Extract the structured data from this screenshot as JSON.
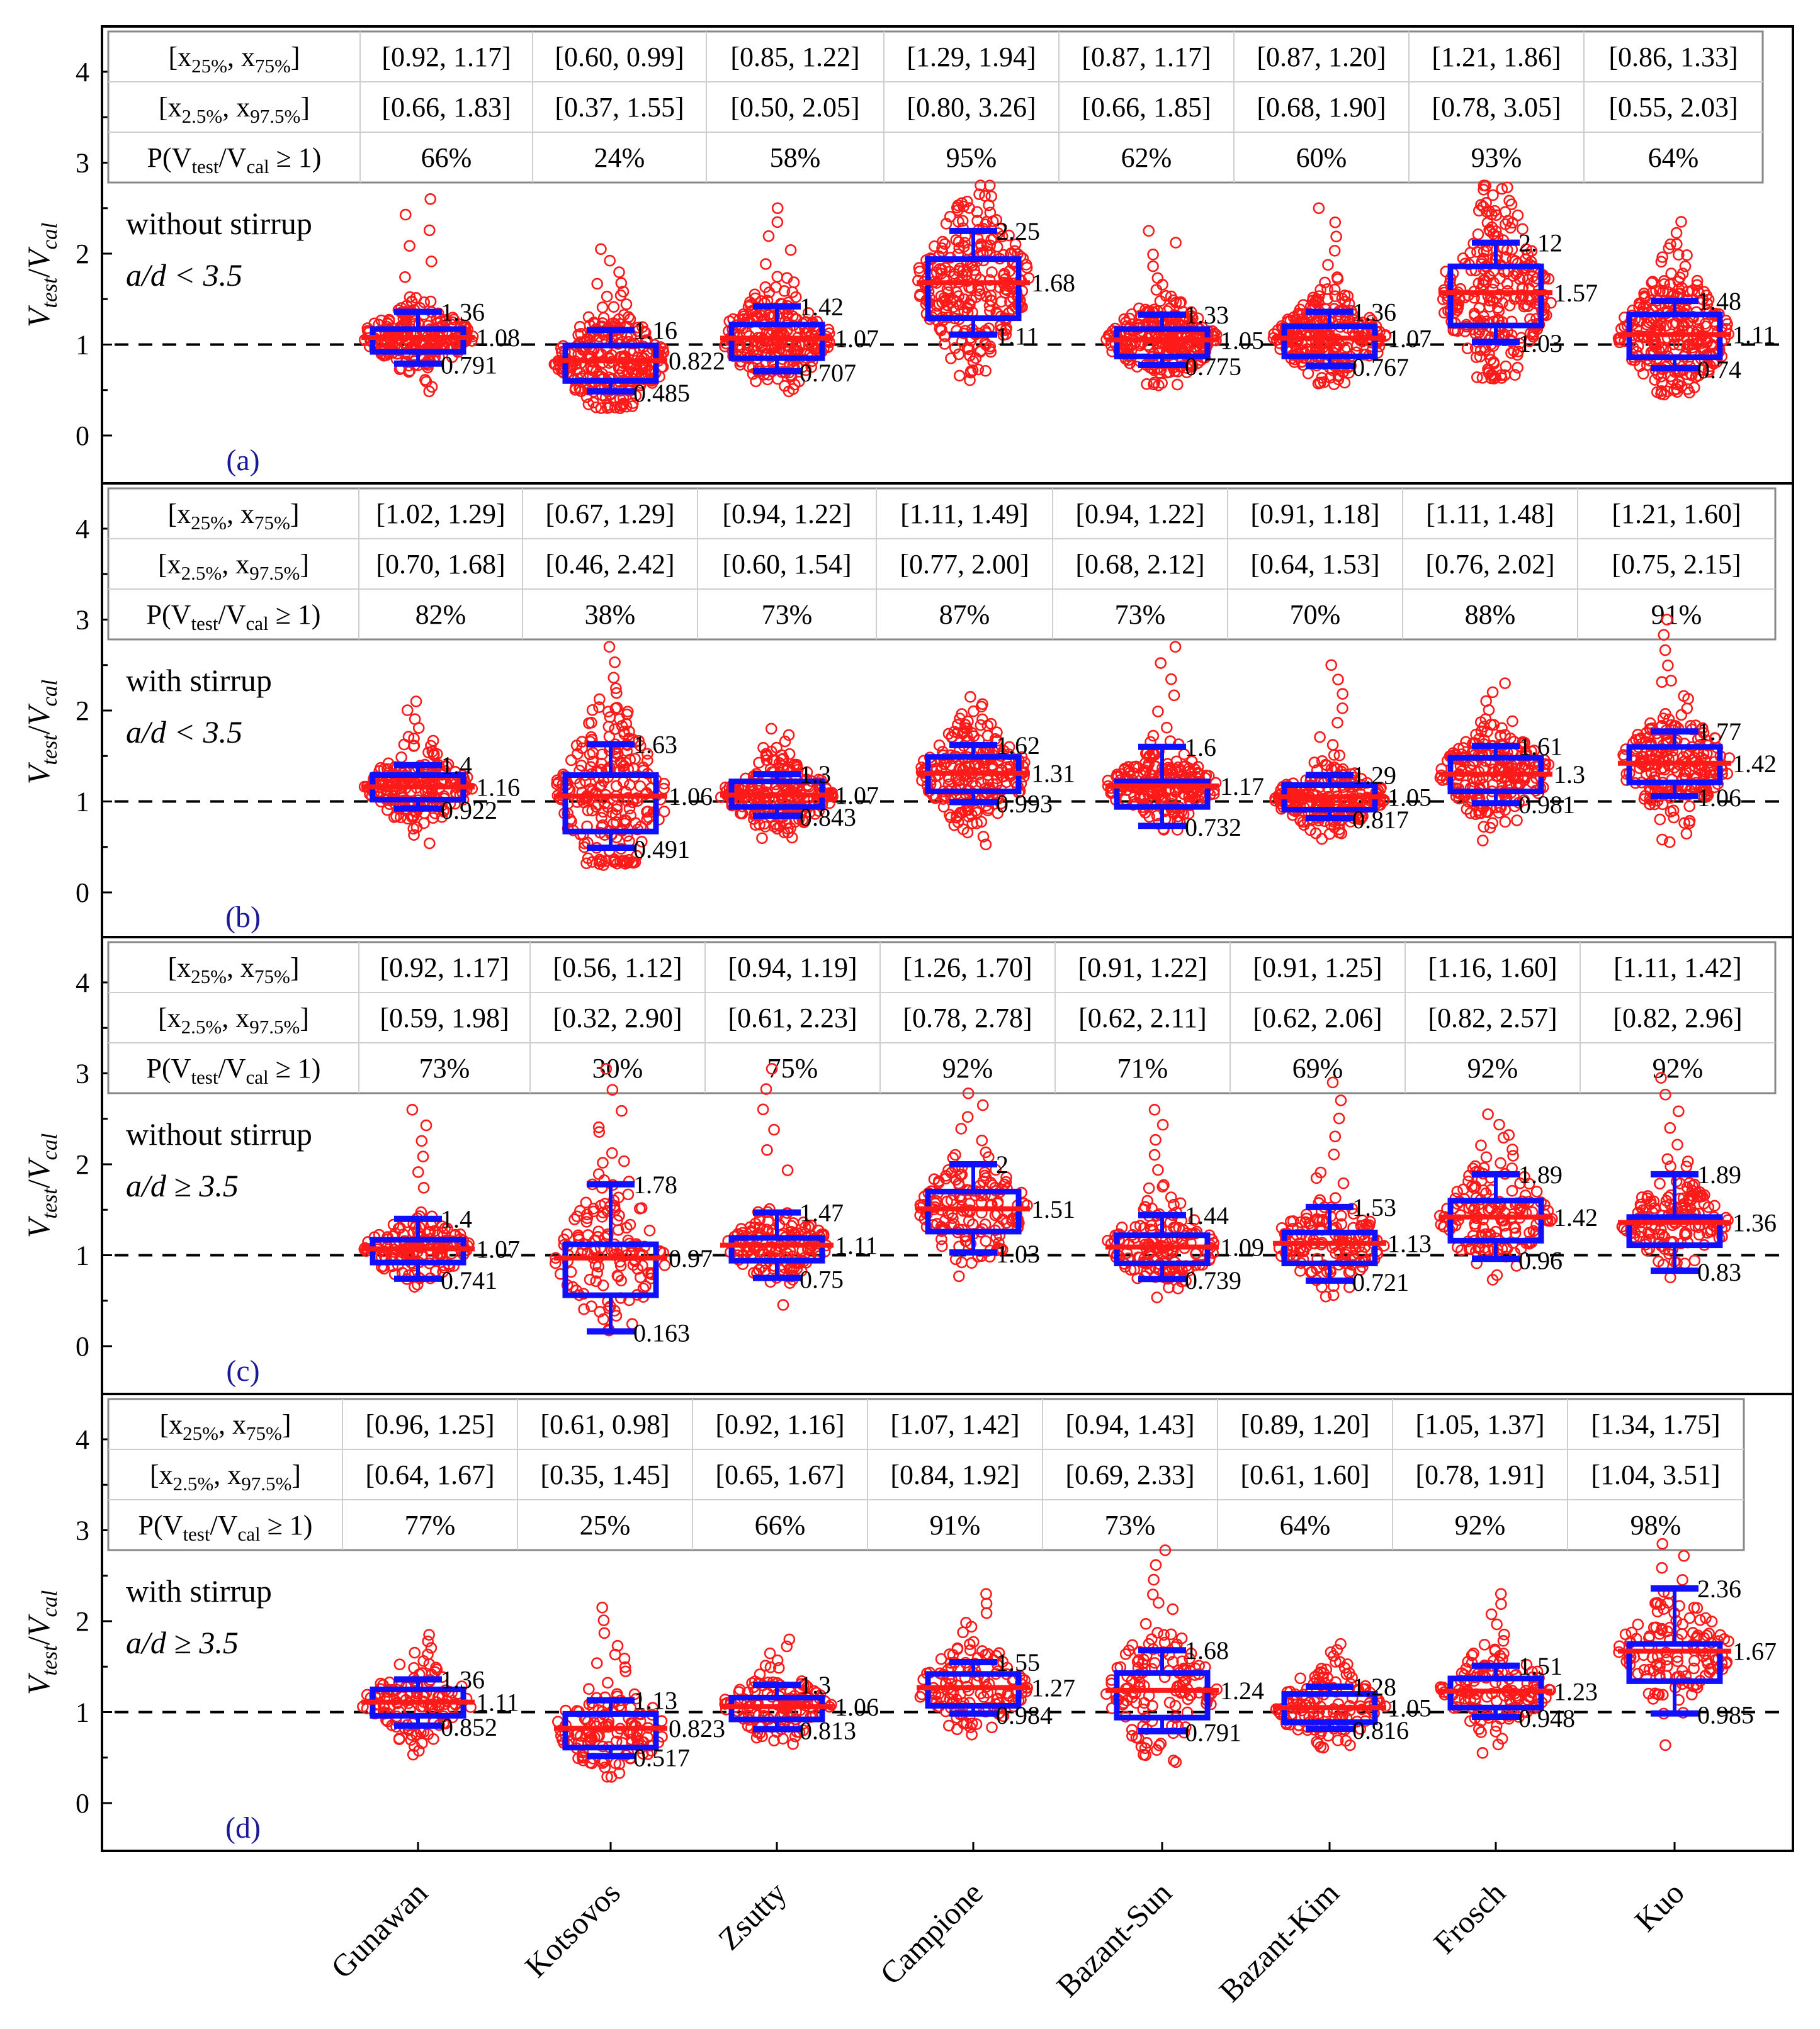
{
  "colors": {
    "box": "#1010ff",
    "median": "#ff1a1a",
    "points": "#ff1a1a",
    "reference": "#000000",
    "panel_label": "#1a1a99",
    "table_border": "#888888",
    "axis": "#000000"
  },
  "chart_data": {
    "type": "box-swarm",
    "x": {
      "categories": [
        "Gunawan",
        "Kotsovos",
        "Zsutty",
        "Campione",
        "Bazant-Sun",
        "Bazant-Kim",
        "Frosch",
        "Kuo"
      ]
    },
    "y": {
      "ticks": [
        "0",
        "1",
        "2",
        "3",
        "4"
      ],
      "ylim": [
        0,
        4.4
      ]
    },
    "ylabel": {
      "main1": "V",
      "sub1": "test",
      "slash": "/",
      "main2": "V",
      "sub2": "cal"
    },
    "reference_line": 1,
    "table_row_labels": {
      "r1": {
        "a": "[x",
        "b": "25%",
        "c": ", x",
        "d": "75%",
        "e": "]"
      },
      "r2": {
        "a": "[x",
        "b": "2.5%",
        "c": ", x",
        "d": "97.5%",
        "e": "]"
      },
      "r3": {
        "a": "P(V",
        "b": "test",
        "c": "/V",
        "d": "cal",
        "e": " ≥ 1)"
      }
    },
    "panels": [
      {
        "label": "(a)",
        "stirrup": "without stirrup",
        "ratio": "a/d < 3.5",
        "iqr": [
          "[0.92, 1.17]",
          "[0.60, 0.99]",
          "[0.85, 1.22]",
          "[1.29, 1.94]",
          "[0.87, 1.17]",
          "[0.87, 1.20]",
          "[1.21, 1.86]",
          "[0.86, 1.33]"
        ],
        "ci95": [
          "[0.66, 1.83]",
          "[0.37, 1.55]",
          "[0.50, 2.05]",
          "[0.80, 3.26]",
          "[0.66, 1.85]",
          "[0.68, 1.90]",
          "[0.78, 3.05]",
          "[0.55, 2.03]"
        ],
        "prob": [
          "66%",
          "24%",
          "58%",
          "95%",
          "62%",
          "60%",
          "93%",
          "64%"
        ],
        "box": [
          {
            "q1": 0.92,
            "q3": 1.17,
            "median": 1.08,
            "wlo": 0.791,
            "whi": 1.36,
            "min": 0.45,
            "max": 2.6,
            "n": 230
          },
          {
            "q1": 0.6,
            "q3": 0.99,
            "median": 0.822,
            "wlo": 0.485,
            "whi": 1.16,
            "min": 0.3,
            "max": 2.05,
            "n": 260
          },
          {
            "q1": 0.85,
            "q3": 1.22,
            "median": 1.07,
            "wlo": 0.707,
            "whi": 1.42,
            "min": 0.35,
            "max": 2.5,
            "n": 230
          },
          {
            "q1": 1.29,
            "q3": 1.94,
            "median": 1.68,
            "wlo": 1.11,
            "whi": 2.25,
            "min": 0.6,
            "max": 2.75,
            "n": 260
          },
          {
            "q1": 0.87,
            "q3": 1.17,
            "median": 1.05,
            "wlo": 0.775,
            "whi": 1.33,
            "min": 0.55,
            "max": 2.25,
            "n": 260
          },
          {
            "q1": 0.87,
            "q3": 1.2,
            "median": 1.07,
            "wlo": 0.767,
            "whi": 1.36,
            "min": 0.55,
            "max": 2.5,
            "n": 260
          },
          {
            "q1": 1.21,
            "q3": 1.86,
            "median": 1.57,
            "wlo": 1.03,
            "whi": 2.12,
            "min": 0.62,
            "max": 2.75,
            "n": 260
          },
          {
            "q1": 0.86,
            "q3": 1.33,
            "median": 1.11,
            "wlo": 0.74,
            "whi": 1.48,
            "min": 0.45,
            "max": 2.35,
            "n": 260
          }
        ],
        "value_labels": [
          {
            "whi": "1.36",
            "median": "1.08",
            "wlo": "0.791"
          },
          {
            "whi": "1.16",
            "median": "0.822",
            "wlo": "0.485"
          },
          {
            "whi": "1.42",
            "median": "1.07",
            "wlo": "0.707"
          },
          {
            "whi": "2.25",
            "median": "1.68",
            "wlo": "1.11"
          },
          {
            "whi": "1.33",
            "median": "1.05",
            "wlo": "0.775"
          },
          {
            "whi": "1.36",
            "median": "1.07",
            "wlo": "0.767"
          },
          {
            "whi": "2.12",
            "median": "1.57",
            "wlo": "1.03"
          },
          {
            "whi": "1.48",
            "median": "1.11",
            "wlo": "0.74"
          }
        ]
      },
      {
        "label": "(b)",
        "stirrup": "with stirrup",
        "ratio": "a/d < 3.5",
        "iqr": [
          "[1.02, 1.29]",
          "[0.67, 1.29]",
          "[0.94, 1.22]",
          "[1.11, 1.49]",
          "[0.94, 1.22]",
          "[0.91, 1.18]",
          "[1.11, 1.48]",
          "[1.21, 1.60]"
        ],
        "ci95": [
          "[0.70, 1.68]",
          "[0.46, 2.42]",
          "[0.60, 1.54]",
          "[0.77, 2.00]",
          "[0.68, 2.12]",
          "[0.64, 1.53]",
          "[0.76, 2.02]",
          "[0.75, 2.15]"
        ],
        "prob": [
          "82%",
          "38%",
          "73%",
          "87%",
          "73%",
          "70%",
          "88%",
          "91%"
        ],
        "box": [
          {
            "q1": 1.02,
            "q3": 1.29,
            "median": 1.16,
            "wlo": 0.922,
            "whi": 1.4,
            "min": 0.35,
            "max": 2.1,
            "n": 200
          },
          {
            "q1": 0.67,
            "q3": 1.29,
            "median": 1.06,
            "wlo": 0.491,
            "whi": 1.63,
            "min": 0.3,
            "max": 2.7,
            "n": 230
          },
          {
            "q1": 0.94,
            "q3": 1.22,
            "median": 1.07,
            "wlo": 0.843,
            "whi": 1.3,
            "min": 0.35,
            "max": 1.8,
            "n": 220
          },
          {
            "q1": 1.11,
            "q3": 1.49,
            "median": 1.31,
            "wlo": 0.993,
            "whi": 1.62,
            "min": 0.42,
            "max": 2.15,
            "n": 220
          },
          {
            "q1": 0.94,
            "q3": 1.22,
            "median": 1.17,
            "wlo": 0.732,
            "whi": 1.6,
            "min": 0.5,
            "max": 2.7,
            "n": 220
          },
          {
            "q1": 0.91,
            "q3": 1.18,
            "median": 1.05,
            "wlo": 0.817,
            "whi": 1.29,
            "min": 0.35,
            "max": 2.5,
            "n": 220
          },
          {
            "q1": 1.11,
            "q3": 1.48,
            "median": 1.3,
            "wlo": 0.981,
            "whi": 1.61,
            "min": 0.42,
            "max": 2.3,
            "n": 220
          },
          {
            "q1": 1.21,
            "q3": 1.6,
            "median": 1.42,
            "wlo": 1.06,
            "whi": 1.77,
            "min": 0.45,
            "max": 3.0,
            "n": 220
          }
        ],
        "value_labels": [
          {
            "whi": "1.4",
            "median": "1.16",
            "wlo": "0.922"
          },
          {
            "whi": "1.63",
            "median": "1.06",
            "wlo": "0.491"
          },
          {
            "whi": "1.3",
            "median": "1.07",
            "wlo": "0.843"
          },
          {
            "whi": "1.62",
            "median": "1.31",
            "wlo": "0.993"
          },
          {
            "whi": "1.6",
            "median": "1.17",
            "wlo": "0.732"
          },
          {
            "whi": "1.29",
            "median": "1.05",
            "wlo": "0.817"
          },
          {
            "whi": "1.61",
            "median": "1.3",
            "wlo": "0.981"
          },
          {
            "whi": "1.77",
            "median": "1.42",
            "wlo": "1.06"
          }
        ]
      },
      {
        "label": "(c)",
        "stirrup": "without stirrup",
        "ratio": "a/d ≥ 3.5",
        "iqr": [
          "[0.92, 1.17]",
          "[0.56, 1.12]",
          "[0.94, 1.19]",
          "[1.26, 1.70]",
          "[0.91, 1.22]",
          "[0.91, 1.25]",
          "[1.16, 1.60]",
          "[1.11, 1.42]"
        ],
        "ci95": [
          "[0.59, 1.98]",
          "[0.32, 2.90]",
          "[0.61, 2.23]",
          "[0.78, 2.78]",
          "[0.62, 2.11]",
          "[0.62, 2.06]",
          "[0.82, 2.57]",
          "[0.82, 2.96]"
        ],
        "prob": [
          "73%",
          "30%",
          "75%",
          "92%",
          "71%",
          "69%",
          "92%",
          "92%"
        ],
        "box": [
          {
            "q1": 0.92,
            "q3": 1.17,
            "median": 1.07,
            "wlo": 0.741,
            "whi": 1.4,
            "min": 0.55,
            "max": 2.6,
            "n": 150
          },
          {
            "q1": 0.56,
            "q3": 1.12,
            "median": 0.97,
            "wlo": 0.163,
            "whi": 1.78,
            "min": 0.16,
            "max": 3.05,
            "n": 140
          },
          {
            "q1": 0.94,
            "q3": 1.19,
            "median": 1.11,
            "wlo": 0.75,
            "whi": 1.47,
            "min": 0.45,
            "max": 3.05,
            "n": 150
          },
          {
            "q1": 1.26,
            "q3": 1.7,
            "median": 1.51,
            "wlo": 1.03,
            "whi": 2.0,
            "min": 0.65,
            "max": 2.78,
            "n": 150
          },
          {
            "q1": 0.91,
            "q3": 1.22,
            "median": 1.09,
            "wlo": 0.739,
            "whi": 1.44,
            "min": 0.5,
            "max": 2.6,
            "n": 150
          },
          {
            "q1": 0.91,
            "q3": 1.25,
            "median": 1.13,
            "wlo": 0.721,
            "whi": 1.53,
            "min": 0.5,
            "max": 2.9,
            "n": 150
          },
          {
            "q1": 1.16,
            "q3": 1.6,
            "median": 1.42,
            "wlo": 0.96,
            "whi": 1.89,
            "min": 0.7,
            "max": 2.55,
            "n": 150
          },
          {
            "q1": 1.11,
            "q3": 1.42,
            "median": 1.36,
            "wlo": 0.83,
            "whi": 1.89,
            "min": 0.55,
            "max": 2.95,
            "n": 150
          }
        ],
        "value_labels": [
          {
            "whi": "1.4",
            "median": "1.07",
            "wlo": "0.741"
          },
          {
            "whi": "1.78",
            "median": "0.97",
            "wlo": "0.163"
          },
          {
            "whi": "1.47",
            "median": "1.11",
            "wlo": "0.75"
          },
          {
            "whi": "2",
            "median": "1.51",
            "wlo": "1.03"
          },
          {
            "whi": "1.44",
            "median": "1.09",
            "wlo": "0.739"
          },
          {
            "whi": "1.53",
            "median": "1.13",
            "wlo": "0.721"
          },
          {
            "whi": "1.89",
            "median": "1.42",
            "wlo": "0.96"
          },
          {
            "whi": "1.89",
            "median": "1.36",
            "wlo": "0.83"
          }
        ]
      },
      {
        "label": "(d)",
        "stirrup": "with stirrup",
        "ratio": "a/d ≥ 3.5",
        "iqr": [
          "[0.96, 1.25]",
          "[0.61, 0.98]",
          "[0.92, 1.16]",
          "[1.07, 1.42]",
          "[0.94, 1.43]",
          "[0.89, 1.20]",
          "[1.05, 1.37]",
          "[1.34, 1.75]"
        ],
        "ci95": [
          "[0.64, 1.67]",
          "[0.35, 1.45]",
          "[0.65, 1.67]",
          "[0.84, 1.92]",
          "[0.69, 2.33]",
          "[0.61, 1.60]",
          "[0.78, 1.91]",
          "[1.04, 3.51]"
        ],
        "prob": [
          "77%",
          "25%",
          "66%",
          "91%",
          "73%",
          "64%",
          "92%",
          "98%"
        ],
        "box": [
          {
            "q1": 0.96,
            "q3": 1.25,
            "median": 1.11,
            "wlo": 0.852,
            "whi": 1.36,
            "min": 0.45,
            "max": 1.85,
            "n": 130
          },
          {
            "q1": 0.61,
            "q3": 0.98,
            "median": 0.823,
            "wlo": 0.517,
            "whi": 1.13,
            "min": 0.25,
            "max": 2.15,
            "n": 130
          },
          {
            "q1": 0.92,
            "q3": 1.16,
            "median": 1.06,
            "wlo": 0.813,
            "whi": 1.3,
            "min": 0.42,
            "max": 1.8,
            "n": 130
          },
          {
            "q1": 1.07,
            "q3": 1.42,
            "median": 1.27,
            "wlo": 0.984,
            "whi": 1.55,
            "min": 0.55,
            "max": 2.3,
            "n": 130
          },
          {
            "q1": 0.94,
            "q3": 1.43,
            "median": 1.24,
            "wlo": 0.791,
            "whi": 1.68,
            "min": 0.45,
            "max": 2.78,
            "n": 130
          },
          {
            "q1": 0.89,
            "q3": 1.2,
            "median": 1.05,
            "wlo": 0.816,
            "whi": 1.28,
            "min": 0.45,
            "max": 1.75,
            "n": 130
          },
          {
            "q1": 1.05,
            "q3": 1.37,
            "median": 1.23,
            "wlo": 0.948,
            "whi": 1.51,
            "min": 0.45,
            "max": 2.3,
            "n": 130
          },
          {
            "q1": 1.34,
            "q3": 1.75,
            "median": 1.67,
            "wlo": 0.985,
            "whi": 2.36,
            "min": 0.6,
            "max": 2.85,
            "n": 130
          }
        ],
        "value_labels": [
          {
            "whi": "1.36",
            "median": "1.11",
            "wlo": "0.852"
          },
          {
            "whi": "1.13",
            "median": "0.823",
            "wlo": "0.517"
          },
          {
            "whi": "1.3",
            "median": "1.06",
            "wlo": "0.813"
          },
          {
            "whi": "1.55",
            "median": "1.27",
            "wlo": "0.984"
          },
          {
            "whi": "1.68",
            "median": "1.24",
            "wlo": "0.791"
          },
          {
            "whi": "1.28",
            "median": "1.05",
            "wlo": "0.816"
          },
          {
            "whi": "1.51",
            "median": "1.23",
            "wlo": "0.948"
          },
          {
            "whi": "2.36",
            "median": "1.67",
            "wlo": "0.985"
          }
        ]
      }
    ]
  }
}
